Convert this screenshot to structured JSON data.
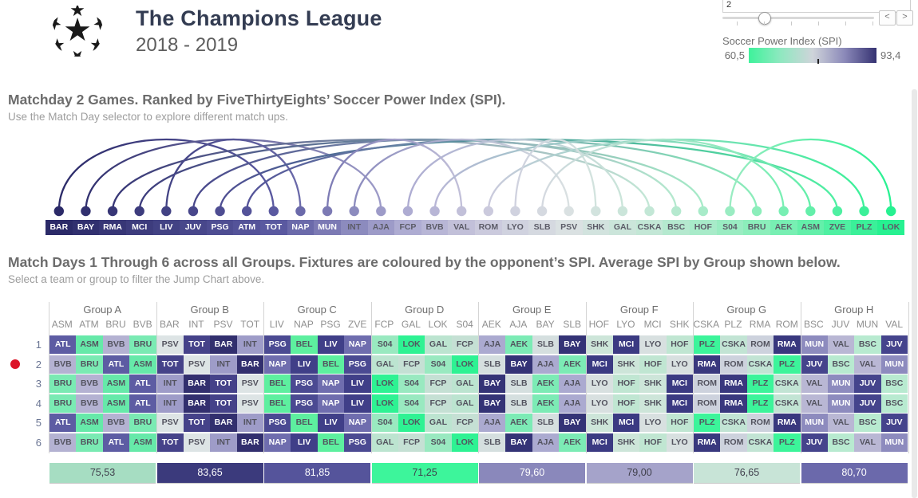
{
  "header": {
    "title": "The Champions League",
    "season": "2018 - 2019",
    "logo": "ucl-starball"
  },
  "controls": {
    "matchday_value": "2",
    "prev_label": "<",
    "next_label": ">",
    "spi_legend": {
      "label": "Soccer Power Index (SPI)",
      "min": "60,5",
      "max": "93,4",
      "gradient": [
        "#3ef29b",
        "#8fe8c0",
        "#cfd4da",
        "#8b89b9",
        "#353272"
      ]
    },
    "accent_red": "#dc1428"
  },
  "jump_chart": {
    "heading": "Matchday 2 Games. Ranked by FiveThirtyEights’ Soccer Power Index (SPI).",
    "subheading": "Use the Match Day selector to explore different match ups.",
    "teams": [
      {
        "abbr": "BAR",
        "color": "#2b2a68"
      },
      {
        "abbr": "BAY",
        "color": "#31306f"
      },
      {
        "abbr": "RMA",
        "color": "#373676"
      },
      {
        "abbr": "MCI",
        "color": "#3d3c7d"
      },
      {
        "abbr": "LIV",
        "color": "#424284"
      },
      {
        "abbr": "JUV",
        "color": "#48478b"
      },
      {
        "abbr": "PSG",
        "color": "#4e4d92"
      },
      {
        "abbr": "ATM",
        "color": "#545399"
      },
      {
        "abbr": "TOT",
        "color": "#5a59a0"
      },
      {
        "abbr": "NAP",
        "color": "#6b6aaa"
      },
      {
        "abbr": "MUN",
        "color": "#7c7ab4"
      },
      {
        "abbr": "INT",
        "color": "#8c8bbe"
      },
      {
        "abbr": "AJA",
        "color": "#9d9bc8"
      },
      {
        "abbr": "FCP",
        "color": "#aeacd2"
      },
      {
        "abbr": "BVB",
        "color": "#b8b6d6"
      },
      {
        "abbr": "VAL",
        "color": "#c2c0d9"
      },
      {
        "abbr": "ROM",
        "color": "#cbcadd"
      },
      {
        "abbr": "LYO",
        "color": "#d0d2df"
      },
      {
        "abbr": "SLB",
        "color": "#d5d9e0"
      },
      {
        "abbr": "PSV",
        "color": "#dae1e2"
      },
      {
        "abbr": "SHK",
        "color": "#d2e3de"
      },
      {
        "abbr": "GAL",
        "color": "#cbe5da"
      },
      {
        "abbr": "CSKA",
        "color": "#c3e7d6"
      },
      {
        "abbr": "BSC",
        "color": "#b5e9cf"
      },
      {
        "abbr": "HOF",
        "color": "#a8ebc9"
      },
      {
        "abbr": "S04",
        "color": "#9aecc2"
      },
      {
        "abbr": "BRU",
        "color": "#8ceebb"
      },
      {
        "abbr": "AEK",
        "color": "#78efb3"
      },
      {
        "abbr": "ASM",
        "color": "#64efaa"
      },
      {
        "abbr": "ZVE",
        "color": "#4ff0a2"
      },
      {
        "abbr": "PLZ",
        "color": "#3bf099"
      },
      {
        "abbr": "LOK",
        "color": "#27f191"
      }
    ],
    "matches": [
      [
        "BAR",
        "TOT"
      ],
      [
        "BAY",
        "AJA"
      ],
      [
        "RMA",
        "CSKA"
      ],
      [
        "MCI",
        "HOF"
      ],
      [
        "LIV",
        "NAP"
      ],
      [
        "JUV",
        "BSC"
      ],
      [
        "PSG",
        "ZVE"
      ],
      [
        "ATM",
        "BRU"
      ],
      [
        "MUN",
        "VAL"
      ],
      [
        "INT",
        "PSV"
      ],
      [
        "FCP",
        "GAL"
      ],
      [
        "BVB",
        "ASM"
      ],
      [
        "ROM",
        "PLZ"
      ],
      [
        "LYO",
        "SHK"
      ],
      [
        "SLB",
        "AEK"
      ],
      [
        "S04",
        "LOK"
      ]
    ]
  },
  "fixtures": {
    "heading": "Match Days 1 Through 6 across all Groups. Fixtures are coloured by the opponent’s SPI. Average SPI by Group shown below.",
    "subheading": "Select a team or group to filter the Jump Chart above.",
    "matchday_labels": [
      "1",
      "2",
      "3",
      "4",
      "5",
      "6"
    ],
    "selected_matchday": "2",
    "cell_colors": {
      "ATL": "#5d5ca3",
      "ASM": "#66e9a9",
      "BVB": "#b4b2d2",
      "BRU": "#7aeab3",
      "PSV": "#dde4e5",
      "TOT": "#454289",
      "BAR": "#322f6e",
      "INT": "#9e9cc8",
      "PSG": "#4b4a92",
      "BEL": "#5def9f",
      "LIV": "#403f88",
      "NAP": "#6f6dae",
      "S04": "#99e9c0",
      "LOK": "#2ef293",
      "GAL": "#bce4d0",
      "FCP": "#c5e0d4",
      "AJA": "#abaad0",
      "AEK": "#7cebb5",
      "SLB": "#d5dfdf",
      "BAY": "#343376",
      "SHK": "#cde5d9",
      "MCI": "#3b3a82",
      "LYO": "#d8e0e0",
      "HOF": "#c0e6d2",
      "PLZ": "#3cf49a",
      "CSKA": "#c2e4d4",
      "ROM": "#cdd2dd",
      "RMA": "#39387e",
      "MUN": "#8d8bbe",
      "VAL": "#b9b7d4",
      "BSC": "#b8ead0",
      "JUV": "#45448c"
    },
    "groups": [
      {
        "name": "Group A",
        "columns": [
          "ASM",
          "ATM",
          "BRU",
          "BVB"
        ],
        "avg": "75,53",
        "avg_color": "#a6ddc2",
        "rows": [
          [
            "ATL",
            "ASM",
            "BVB",
            "BRU"
          ],
          [
            "BVB",
            "BRU",
            "ATL",
            "ASM"
          ],
          [
            "BRU",
            "BVB",
            "ASM",
            "ATL"
          ],
          [
            "BRU",
            "BVB",
            "ASM",
            "ATL"
          ],
          [
            "ATL",
            "ASM",
            "BVB",
            "BRU"
          ],
          [
            "BVB",
            "BRU",
            "ATL",
            "ASM"
          ]
        ]
      },
      {
        "name": "Group B",
        "columns": [
          "BAR",
          "INT",
          "PSV",
          "TOT"
        ],
        "avg": "83,65",
        "avg_color": "#3b3a7c",
        "rows": [
          [
            "PSV",
            "TOT",
            "BAR",
            "INT"
          ],
          [
            "TOT",
            "PSV",
            "INT",
            "BAR"
          ],
          [
            "INT",
            "BAR",
            "TOT",
            "PSV"
          ],
          [
            "INT",
            "BAR",
            "TOT",
            "PSV"
          ],
          [
            "PSV",
            "TOT",
            "BAR",
            "INT"
          ],
          [
            "TOT",
            "PSV",
            "INT",
            "BAR"
          ]
        ]
      },
      {
        "name": "Group C",
        "columns": [
          "LIV",
          "NAP",
          "PSG",
          "ZVE"
        ],
        "avg": "81,85",
        "avg_color": "#55549b",
        "rows": [
          [
            "PSG",
            "BEL",
            "LIV",
            "NAP"
          ],
          [
            "NAP",
            "LIV",
            "BEL",
            "PSG"
          ],
          [
            "BEL",
            "PSG",
            "NAP",
            "LIV"
          ],
          [
            "BEL",
            "PSG",
            "NAP",
            "LIV"
          ],
          [
            "PSG",
            "BEL",
            "LIV",
            "NAP"
          ],
          [
            "NAP",
            "LIV",
            "BEL",
            "PSG"
          ]
        ]
      },
      {
        "name": "Group D",
        "columns": [
          "FCP",
          "GAL",
          "LOK",
          "S04"
        ],
        "avg": "71,25",
        "avg_color": "#3df59b",
        "rows": [
          [
            "S04",
            "LOK",
            "GAL",
            "FCP"
          ],
          [
            "GAL",
            "FCP",
            "S04",
            "LOK"
          ],
          [
            "LOK",
            "S04",
            "FCP",
            "GAL"
          ],
          [
            "LOK",
            "S04",
            "FCP",
            "GAL"
          ],
          [
            "S04",
            "LOK",
            "GAL",
            "FCP"
          ],
          [
            "GAL",
            "FCP",
            "S04",
            "LOK"
          ]
        ]
      },
      {
        "name": "Group E",
        "columns": [
          "AEK",
          "AJA",
          "BAY",
          "SLB"
        ],
        "avg": "79,60",
        "avg_color": "#8a88bb",
        "rows": [
          [
            "AJA",
            "AEK",
            "SLB",
            "BAY"
          ],
          [
            "SLB",
            "BAY",
            "AJA",
            "AEK"
          ],
          [
            "BAY",
            "SLB",
            "AEK",
            "AJA"
          ],
          [
            "BAY",
            "SLB",
            "AEK",
            "AJA"
          ],
          [
            "AJA",
            "AEK",
            "SLB",
            "BAY"
          ],
          [
            "SLB",
            "BAY",
            "AJA",
            "AEK"
          ]
        ]
      },
      {
        "name": "Group F",
        "columns": [
          "HOF",
          "LYO",
          "MCI",
          "SHK"
        ],
        "avg": "79,00",
        "avg_color": "#a5a3ca",
        "rows": [
          [
            "SHK",
            "MCI",
            "LYO",
            "HOF"
          ],
          [
            "MCI",
            "SHK",
            "HOF",
            "LYO"
          ],
          [
            "LYO",
            "HOF",
            "SHK",
            "MCI"
          ],
          [
            "LYO",
            "HOF",
            "SHK",
            "MCI"
          ],
          [
            "SHK",
            "MCI",
            "LYO",
            "HOF"
          ],
          [
            "MCI",
            "SHK",
            "HOF",
            "LYO"
          ]
        ]
      },
      {
        "name": "Group G",
        "columns": [
          "CSKA",
          "PLZ",
          "RMA",
          "ROM"
        ],
        "avg": "76,65",
        "avg_color": "#c8e4d7",
        "rows": [
          [
            "PLZ",
            "CSKA",
            "ROM",
            "RMA"
          ],
          [
            "RMA",
            "ROM",
            "CSKA",
            "PLZ"
          ],
          [
            "ROM",
            "RMA",
            "PLZ",
            "CSKA"
          ],
          [
            "ROM",
            "RMA",
            "PLZ",
            "CSKA"
          ],
          [
            "PLZ",
            "CSKA",
            "ROM",
            "RMA"
          ],
          [
            "RMA",
            "ROM",
            "CSKA",
            "PLZ"
          ]
        ]
      },
      {
        "name": "Group H",
        "columns": [
          "BSC",
          "JUV",
          "MUN",
          "VAL"
        ],
        "avg": "80,70",
        "avg_color": "#6b69ab",
        "rows": [
          [
            "MUN",
            "VAL",
            "BSC",
            "JUV"
          ],
          [
            "JUV",
            "BSC",
            "VAL",
            "MUN"
          ],
          [
            "VAL",
            "MUN",
            "JUV",
            "BSC"
          ],
          [
            "VAL",
            "MUN",
            "JUV",
            "BSC"
          ],
          [
            "MUN",
            "VAL",
            "BSC",
            "JUV"
          ],
          [
            "JUV",
            "BSC",
            "VAL",
            "MUN"
          ]
        ]
      }
    ]
  },
  "chart_data": [
    {
      "type": "arc",
      "title": "Matchday 2 Games. Ranked by FiveThirtyEights’ Soccer Power Index (SPI).",
      "x_order_by_spi_rank": [
        "BAR",
        "BAY",
        "RMA",
        "MCI",
        "LIV",
        "JUV",
        "PSG",
        "ATM",
        "TOT",
        "NAP",
        "MUN",
        "INT",
        "AJA",
        "FCP",
        "BVB",
        "VAL",
        "ROM",
        "LYO",
        "SLB",
        "PSV",
        "SHK",
        "GAL",
        "CSKA",
        "BSC",
        "HOF",
        "S04",
        "BRU",
        "AEK",
        "ASM",
        "ZVE",
        "PLZ",
        "LOK"
      ],
      "pairs": [
        [
          "BAR",
          "TOT"
        ],
        [
          "BAY",
          "AJA"
        ],
        [
          "RMA",
          "CSKA"
        ],
        [
          "MCI",
          "HOF"
        ],
        [
          "LIV",
          "NAP"
        ],
        [
          "JUV",
          "BSC"
        ],
        [
          "PSG",
          "ZVE"
        ],
        [
          "ATM",
          "BRU"
        ],
        [
          "MUN",
          "VAL"
        ],
        [
          "INT",
          "PSV"
        ],
        [
          "FCP",
          "GAL"
        ],
        [
          "BVB",
          "ASM"
        ],
        [
          "ROM",
          "PLZ"
        ],
        [
          "LYO",
          "SHK"
        ],
        [
          "SLB",
          "AEK"
        ],
        [
          "S04",
          "LOK"
        ]
      ],
      "color_scale": {
        "label": "Soccer Power Index (SPI)",
        "min": 60.5,
        "max": 93.4,
        "low_color": "#3ef29b",
        "high_color": "#353272"
      }
    },
    {
      "type": "heatmap",
      "title": "Match Days 1 Through 6 across all Groups. Fixtures are coloured by the opponent’s SPI. Average SPI by Group shown below.",
      "categories": [
        "Group A",
        "Group B",
        "Group C",
        "Group D",
        "Group E",
        "Group F",
        "Group G",
        "Group H"
      ],
      "series": [
        {
          "name": "Average SPI by Group",
          "values": [
            75.53,
            83.65,
            81.85,
            71.25,
            79.6,
            79.0,
            76.65,
            80.7
          ]
        }
      ],
      "rows": [
        "1",
        "2",
        "3",
        "4",
        "5",
        "6"
      ]
    }
  ]
}
